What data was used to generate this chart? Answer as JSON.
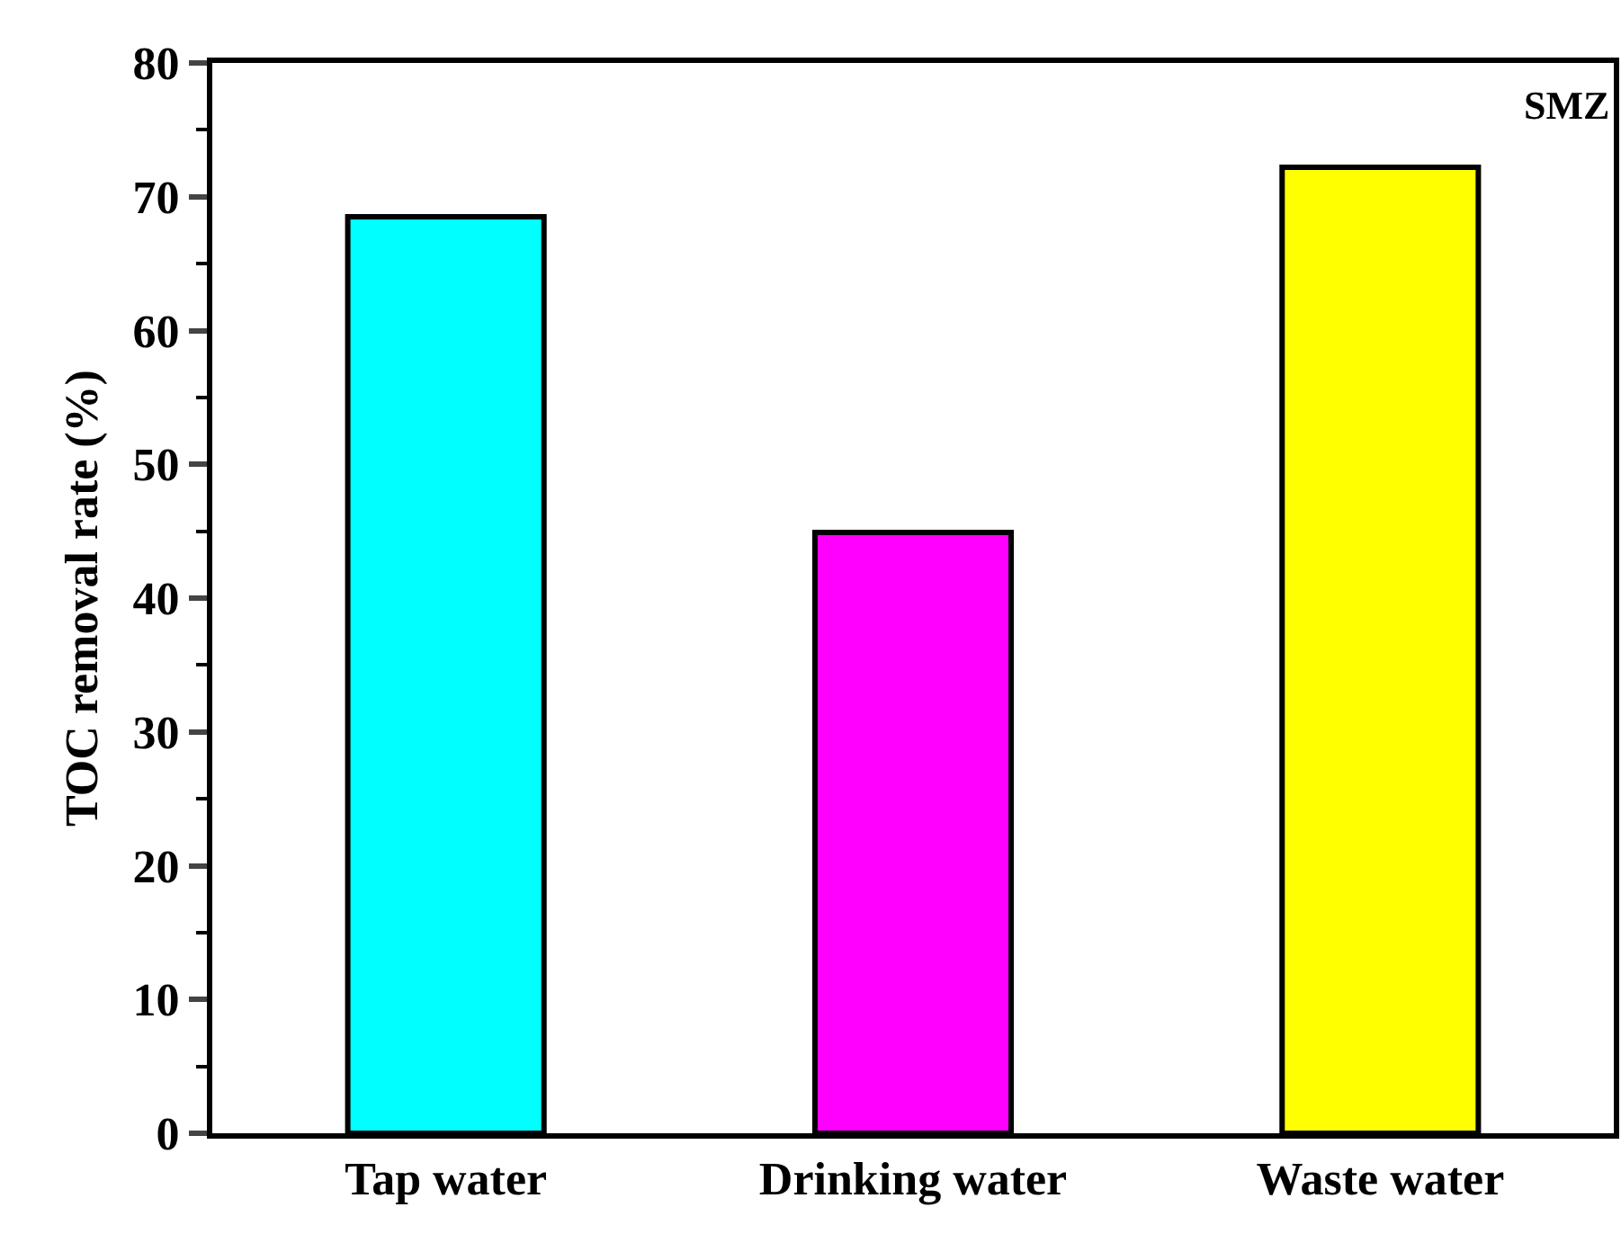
{
  "chart_data": {
    "type": "bar",
    "ylabel": "TOC removal rate (%)",
    "annotations": [
      "SMZ"
    ],
    "categories": [
      "Tap water",
      "Drinking water",
      "Waste water"
    ],
    "values": [
      68.5,
      44.9,
      72.2
    ],
    "colors": [
      "#00ffff",
      "#ff00ff",
      "#ffff00"
    ],
    "ylim": [
      0,
      80
    ],
    "yticks": [
      0,
      10,
      20,
      30,
      40,
      50,
      60,
      70,
      80
    ],
    "grid": false,
    "legend": false
  }
}
